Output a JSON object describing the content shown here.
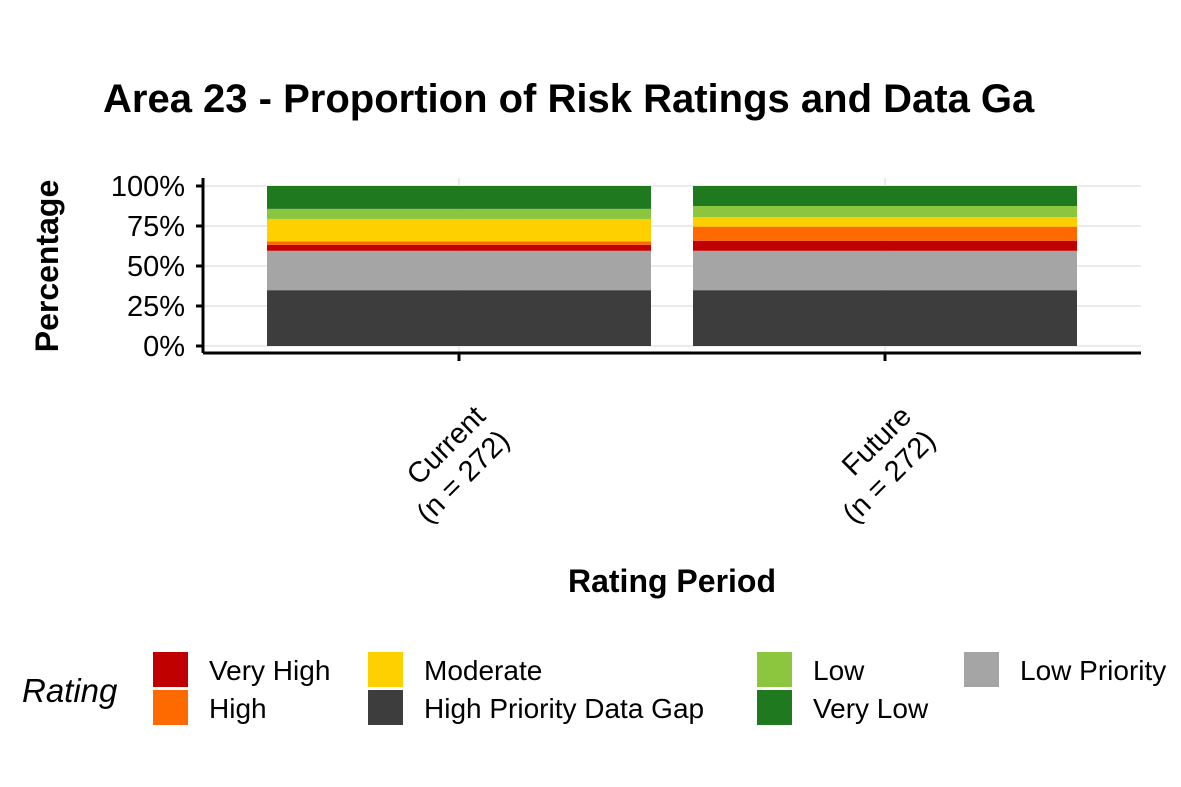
{
  "chart_data": {
    "type": "bar",
    "stacked": true,
    "title": "Area 23 - Proportion of Risk Ratings and Data Ga",
    "xlabel": "Rating Period",
    "ylabel": "Percentage",
    "ylim": [
      0,
      100
    ],
    "yticks": [
      "0%",
      "25%",
      "50%",
      "75%",
      "100%"
    ],
    "categories": [
      [
        "Current",
        "(n = 272)"
      ],
      [
        "Future",
        "(n = 272)"
      ]
    ],
    "series": [
      {
        "name": "High Priority Data Gap",
        "color": "#3d3d3d",
        "values": [
          34.9,
          34.9
        ]
      },
      {
        "name": "Low Priority",
        "color": "#a5a5a5",
        "values": [
          24.6,
          24.6
        ]
      },
      {
        "name": "Very High",
        "color": "#c00000",
        "values": [
          3.7,
          6.3
        ]
      },
      {
        "name": "High",
        "color": "#ff6a00",
        "values": [
          2.2,
          8.8
        ]
      },
      {
        "name": "Moderate",
        "color": "#ffd000",
        "values": [
          14.0,
          5.9
        ]
      },
      {
        "name": "Low",
        "color": "#8cc63f",
        "values": [
          6.3,
          7.0
        ]
      },
      {
        "name": "Very Low",
        "color": "#1f7a1f",
        "values": [
          14.3,
          12.5
        ]
      }
    ],
    "grid": true,
    "legend": {
      "position": "bottom",
      "title": "Rating",
      "order": [
        "Very High",
        "High",
        "Moderate",
        "High Priority Data Gap",
        "Low",
        "Very Low",
        "Low Priority"
      ]
    }
  }
}
